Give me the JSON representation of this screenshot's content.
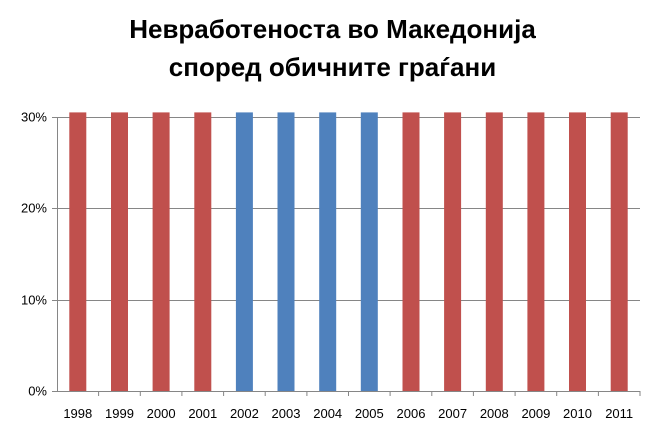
{
  "chart_data": {
    "type": "bar",
    "title": "Невработеноста во Македонија според обичните граѓани",
    "title_lines": [
      "Невработеноста во Македонија",
      "според обичните граѓани"
    ],
    "categories": [
      "1998",
      "1999",
      "2000",
      "2001",
      "2002",
      "2003",
      "2004",
      "2005",
      "2006",
      "2007",
      "2008",
      "2009",
      "2010",
      "2011"
    ],
    "values": [
      30.5,
      30.5,
      30.5,
      30.5,
      30.5,
      30.5,
      30.5,
      30.5,
      30.5,
      30.5,
      30.5,
      30.5,
      30.5,
      30.5
    ],
    "bar_colors": [
      "#c0504d",
      "#c0504d",
      "#c0504d",
      "#c0504d",
      "#4f81bd",
      "#4f81bd",
      "#4f81bd",
      "#4f81bd",
      "#c0504d",
      "#c0504d",
      "#c0504d",
      "#c0504d",
      "#c0504d",
      "#c0504d"
    ],
    "y_ticks": [
      0,
      10,
      20,
      30
    ],
    "y_tick_labels": [
      "0%",
      "10%",
      "20%",
      "30%"
    ],
    "ylim": [
      0,
      30
    ],
    "grid": true,
    "xlabel": "",
    "ylabel": ""
  }
}
